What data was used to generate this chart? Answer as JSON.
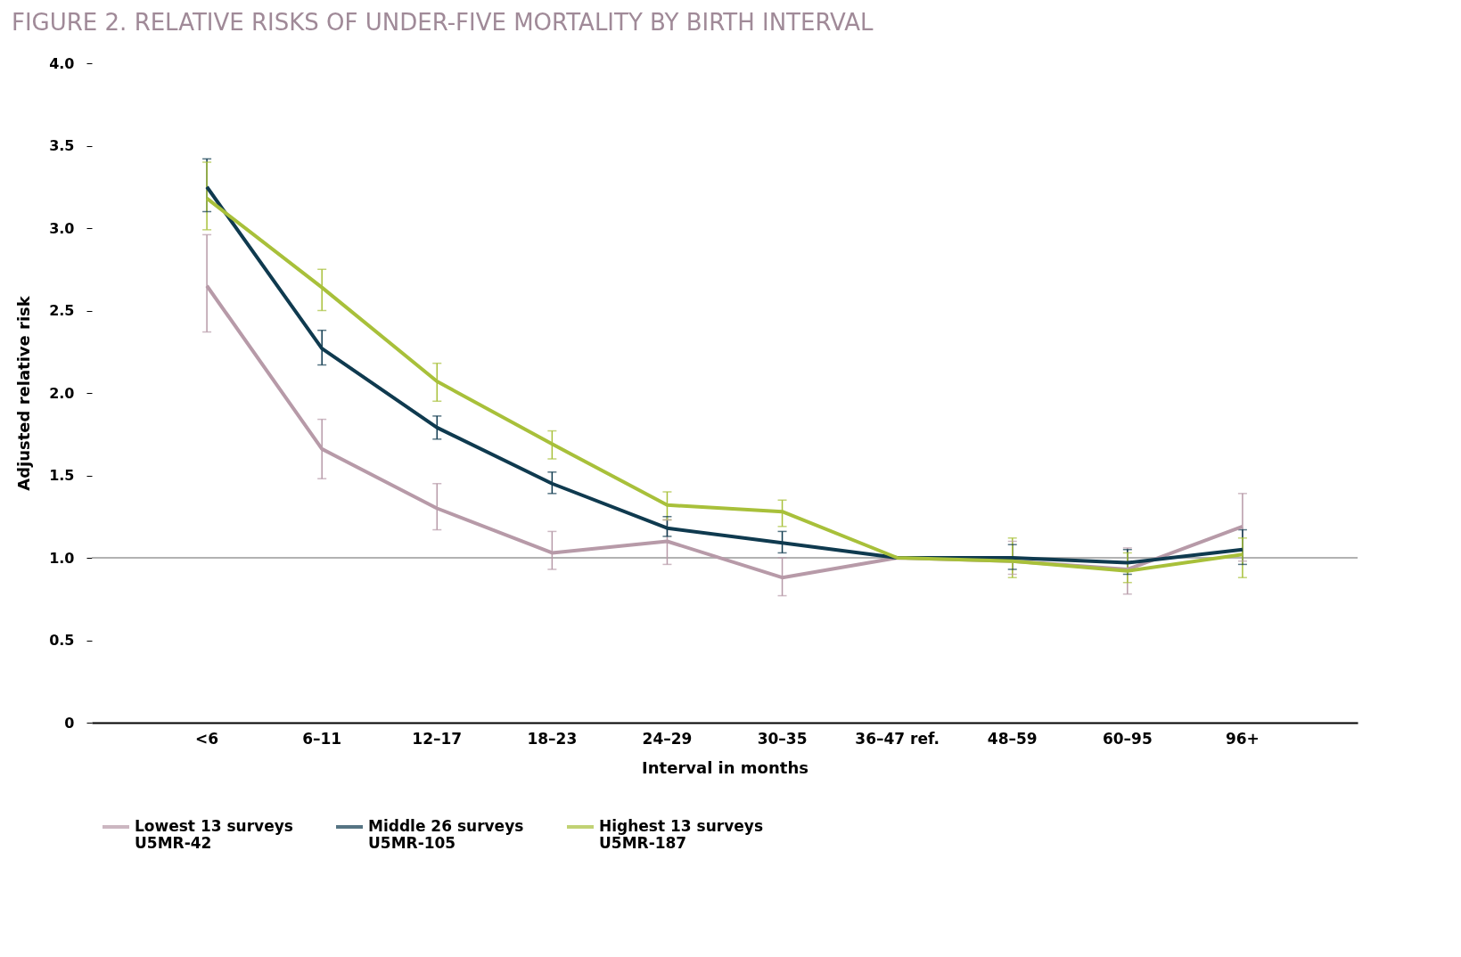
{
  "chart_data": {
    "type": "line",
    "title": "FIGURE 2. RELATIVE RISKS OF UNDER-FIVE MORTALITY BY BIRTH INTERVAL",
    "xlabel": "Interval in months",
    "ylabel": "Adjusted relative risk",
    "categories": [
      "<6",
      "6–11",
      "12–17",
      "18–23",
      "24–29",
      "30–35",
      "36–47 ref.",
      "48–59",
      "60–95",
      "96+"
    ],
    "series": [
      {
        "name": "Lowest 13 surveys\nU5MR-42",
        "color": "#b79aa8",
        "values": [
          2.65,
          1.66,
          1.3,
          1.03,
          1.1,
          0.88,
          1.0,
          0.98,
          0.93,
          1.19
        ],
        "errors": [
          [
            2.37,
            2.96
          ],
          [
            1.48,
            1.84
          ],
          [
            1.17,
            1.45
          ],
          [
            0.93,
            1.16
          ],
          [
            0.96,
            1.23
          ],
          [
            0.77,
            1.0
          ],
          null,
          [
            0.9,
            1.1
          ],
          [
            0.78,
            1.06
          ],
          [
            0.98,
            1.39
          ]
        ]
      },
      {
        "name": "Middle 26 surveys\nU5MR-105",
        "color": "#0f3a4f",
        "values": [
          3.25,
          2.27,
          1.79,
          1.45,
          1.18,
          1.09,
          1.0,
          1.0,
          0.97,
          1.05
        ],
        "errors": [
          [
            3.1,
            3.42
          ],
          [
            2.17,
            2.38
          ],
          [
            1.72,
            1.86
          ],
          [
            1.39,
            1.52
          ],
          [
            1.13,
            1.25
          ],
          [
            1.03,
            1.16
          ],
          null,
          [
            0.93,
            1.08
          ],
          [
            0.9,
            1.05
          ],
          [
            0.96,
            1.17
          ]
        ]
      },
      {
        "name": "Highest 13 surveys\nU5MR-187",
        "color": "#a8c03a",
        "values": [
          3.18,
          2.64,
          2.07,
          1.69,
          1.32,
          1.28,
          1.0,
          0.98,
          0.92,
          1.02
        ],
        "errors": [
          [
            2.99,
            3.4
          ],
          [
            2.5,
            2.75
          ],
          [
            1.95,
            2.18
          ],
          [
            1.6,
            1.77
          ],
          [
            1.23,
            1.4
          ],
          [
            1.19,
            1.35
          ],
          null,
          [
            0.88,
            1.12
          ],
          [
            0.85,
            1.03
          ],
          [
            0.88,
            1.12
          ]
        ]
      }
    ],
    "ylim": [
      0,
      4
    ],
    "yticks": [
      0,
      {
        "value": 0.5,
        "label": "0.5"
      },
      {
        "value": 1,
        "label": "1.0"
      },
      {
        "value": 1.5,
        "label": "1.5"
      },
      {
        "value": 2,
        "label": "2.0"
      },
      {
        "value": 2.5,
        "label": "2.5"
      },
      {
        "value": 3,
        "label": "3.0"
      },
      {
        "value": 3.5,
        "label": "3.5"
      },
      {
        "value": 4,
        "label": "4.0"
      }
    ],
    "ref_lines": [
      {
        "axis": "y",
        "value": 1,
        "color": "#999999"
      }
    ],
    "legend": "bottom",
    "marker": "none",
    "line_style": "solid"
  }
}
